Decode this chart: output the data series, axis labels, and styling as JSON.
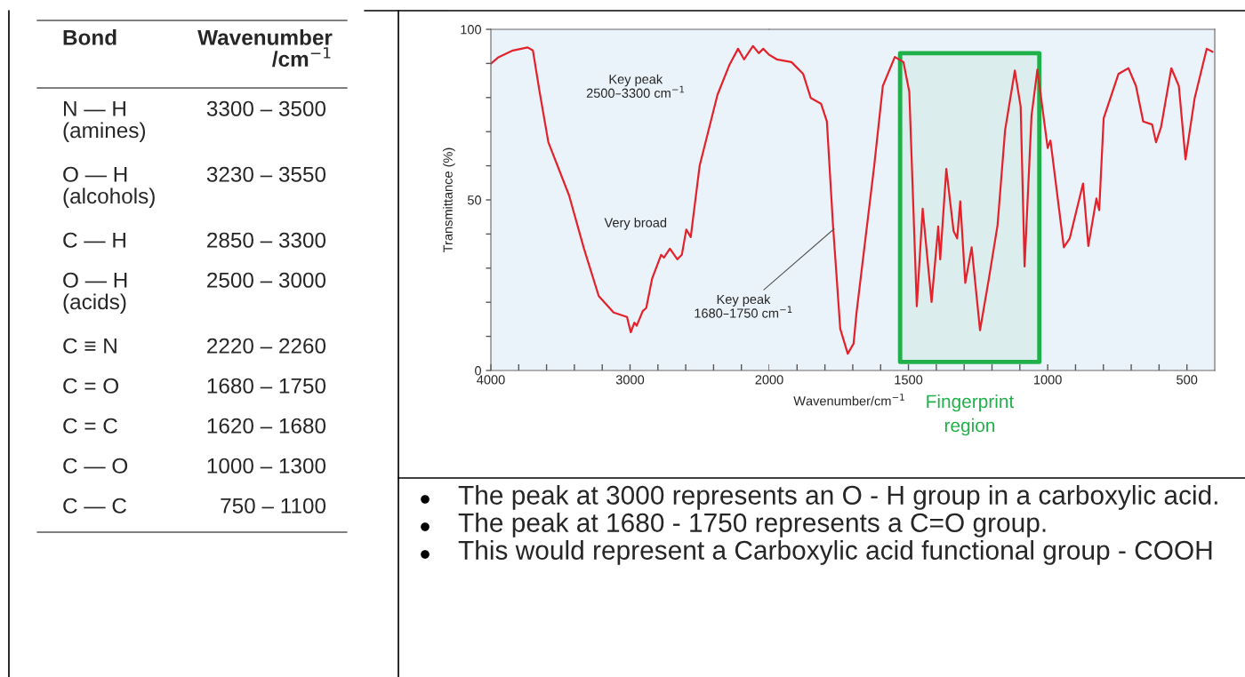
{
  "chart_data": [
    {
      "type": "other",
      "annotations": [
        "Bond",
        "Wavenumber\n/cm$^{−1}$",
        "N — H\n(amines)",
        "3300 – 3500",
        "O — H\n(alcohols)",
        "3230 – 3550",
        "C — H",
        "2850 – 3300",
        "O — H\n(acids)",
        "2500 – 3000",
        "C ≡ N",
        "2220 – 2260",
        "C = O",
        "1680 – 1750",
        "C = C",
        "1620 – 1680",
        "C — O",
        "1000 – 1300",
        "C — C",
        "750 – 1100"
      ]
    },
    {
      "type": "line",
      "ylabel": "Transmittance (%)",
      "xlim": [
        4000,
        2000
      ],
      "ylim": [
        0,
        100
      ],
      "xticks": [
        4000,
        {
          "value": 3800,
          "label": null
        },
        {
          "value": 3600,
          "label": null
        },
        {
          "value": 3400,
          "label": null
        },
        {
          "value": 3200,
          "label": null
        },
        3000,
        {
          "value": 2800,
          "label": null
        },
        {
          "value": 2600,
          "label": null
        },
        {
          "value": 2400,
          "label": null
        },
        {
          "value": 2200,
          "label": null
        },
        2000
      ],
      "yticks": [
        0,
        {
          "value": 10,
          "label": null
        },
        {
          "value": 20,
          "label": null
        },
        {
          "value": 30,
          "label": null
        },
        {
          "value": 40,
          "label": null
        },
        50,
        {
          "value": 60,
          "label": null
        },
        {
          "value": 70,
          "label": null
        },
        {
          "value": 80,
          "label": null
        },
        {
          "value": 90,
          "label": null
        },
        100
      ],
      "series": [
        {
          "color": "#e3222c",
          "x": [
            4000,
            3949,
            3842,
            3736,
            3698,
            3650,
            3587,
            3438,
            3331,
            3225,
            3118,
            3022,
            2995,
            2969,
            2952,
            2909,
            2884,
            2841,
            2777,
            2756,
            2714,
            2660,
            2628,
            2596,
            2564,
            2500,
            2372,
            2287,
            2224,
            2181,
            2117,
            2075,
            2043,
            2000
          ],
          "values": [
            89.9,
            91.7,
            93.8,
            94.7,
            93.8,
            81.7,
            66.9,
            51.3,
            35.7,
            21.8,
            17.0,
            15.7,
            11.2,
            14.0,
            13.1,
            17.4,
            18.3,
            27.0,
            33.9,
            33.1,
            35.7,
            32.6,
            33.9,
            41.3,
            39.1,
            60.0,
            80.8,
            89.5,
            94.3,
            91.2,
            95.1,
            93.0,
            94.3,
            92.5
          ]
        }
      ],
      "annotations": [
        "Key peak\n2500–3300 cm$^{−1}$",
        "Very broad"
      ]
    },
    {
      "type": "line",
      "xlabel": "Wavenumber/cm$^{−1}$",
      "xlim": [
        2000,
        400
      ],
      "ylim": [
        0,
        100
      ],
      "tick_labels": "x",
      "xticks": [
        {
          "value": 1900,
          "label": null
        },
        {
          "value": 1800,
          "label": null
        },
        {
          "value": 1700,
          "label": null
        },
        {
          "value": 1600,
          "label": null
        },
        1500,
        {
          "value": 1400,
          "label": null
        },
        {
          "value": 1300,
          "label": null
        },
        {
          "value": 1200,
          "label": null
        },
        {
          "value": 1100,
          "label": null
        },
        1000,
        {
          "value": 900,
          "label": null
        },
        {
          "value": 800,
          "label": null
        },
        {
          "value": 700,
          "label": null
        },
        {
          "value": 600,
          "label": null
        },
        500
      ],
      "series": [
        {
          "color": "#e3222c",
          "x": [
            2000,
            1973,
            1920,
            1878,
            1851,
            1814,
            1793,
            1771,
            1745,
            1718,
            1697,
            1687,
            1623,
            1592,
            1549,
            1518,
            1497,
            1470,
            1449,
            1417,
            1393,
            1386,
            1364,
            1338,
            1325,
            1314,
            1296,
            1273,
            1243,
            1211,
            1180,
            1153,
            1118,
            1097,
            1083,
            1058,
            1037,
            1000,
            990,
            942,
            921,
            873,
            854,
            825,
            815,
            799,
            746,
            710,
            683,
            657,
            625,
            611,
            593,
            556,
            529,
            505,
            472,
            429,
            408
          ],
          "values": [
            92.5,
            91.2,
            90.4,
            86.9,
            79.9,
            78.2,
            73.0,
            42.6,
            12.2,
            4.9,
            7.9,
            16.6,
            60.0,
            83.4,
            91.9,
            90.4,
            81.7,
            18.8,
            47.4,
            20.1,
            42.2,
            32.6,
            59.1,
            40.9,
            38.7,
            49.6,
            25.7,
            36.1,
            11.8,
            27.0,
            42.6,
            70.4,
            87.9,
            77.3,
            30.5,
            74.7,
            88.2,
            65.2,
            67.4,
            36.1,
            38.7,
            54.8,
            36.5,
            50.4,
            47.0,
            73.9,
            86.9,
            88.6,
            83.4,
            73.0,
            72.1,
            66.9,
            71.3,
            88.6,
            83.4,
            61.9,
            79.9,
            94.3,
            93.4
          ]
        }
      ],
      "bands": [
        {
          "axis": "x",
          "from": 1530,
          "to": 1030,
          "label": "Fingerprint\nregion",
          "color": "#1fb04a"
        }
      ],
      "annotations": [
        {
          "text": "Key peak\n1680–1750 cm$^{−1}$",
          "x": 1760,
          "y": 42
        }
      ]
    },
    {
      "type": "other",
      "annotations": [
        "The peak at 3000 represents an O - H group in a carboxylic acid.",
        "The peak at 1680 - 1750 represents a C=O group.",
        "This would represent a Carboxylic acid functional group - COOH"
      ]
    }
  ]
}
